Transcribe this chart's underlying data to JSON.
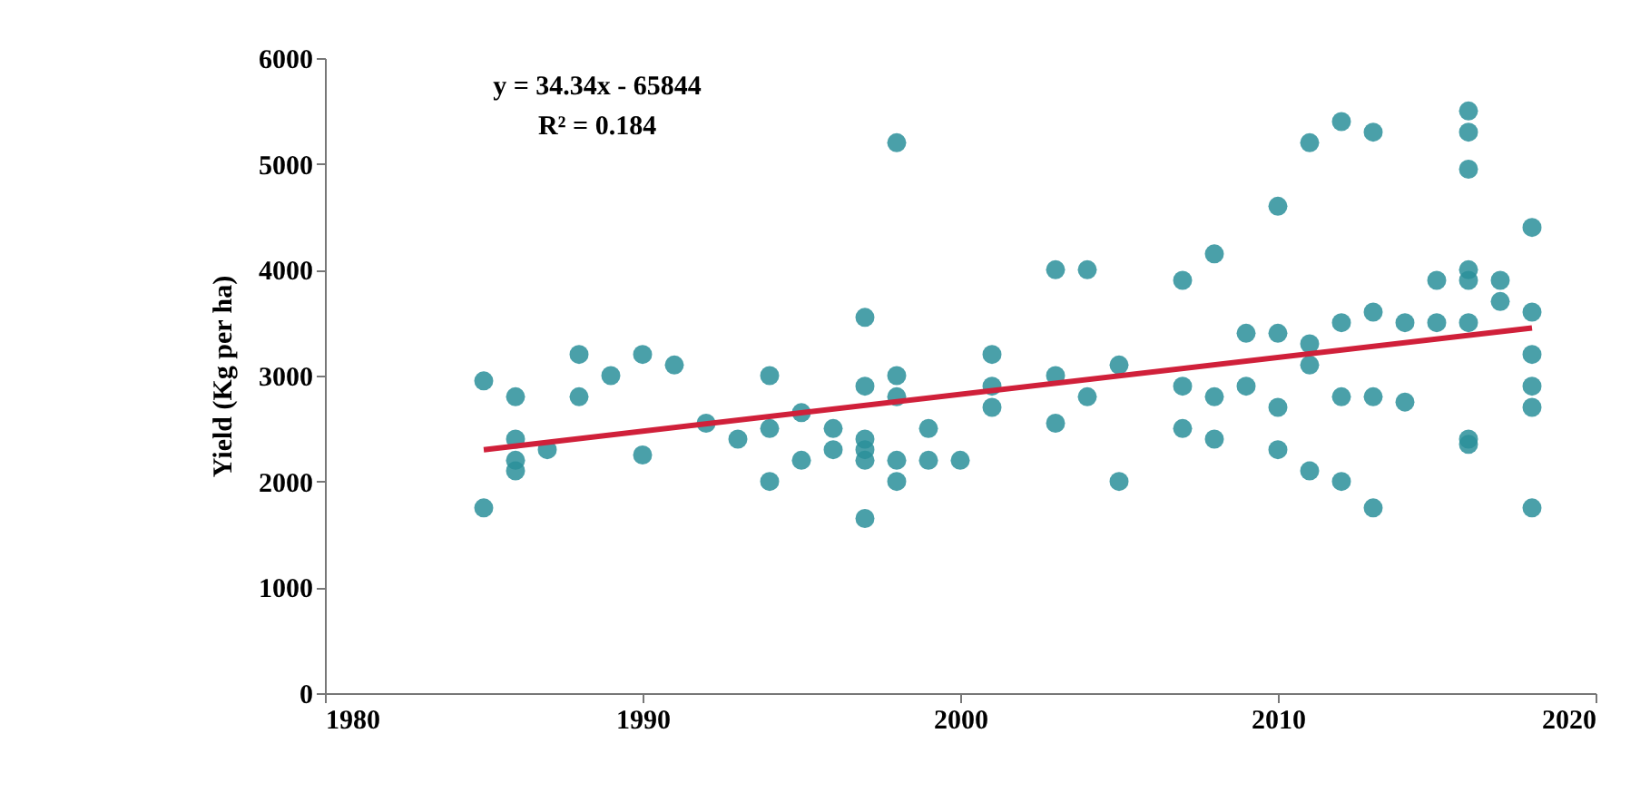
{
  "chart_data": {
    "type": "scatter",
    "ylabel": "Yield (Kg per ha)",
    "annotations": [
      "y = 34.34x - 65844",
      "R² = 0.184"
    ],
    "xlim": [
      1980,
      2020
    ],
    "xticks": [
      1980,
      1990,
      2000,
      2010,
      2020
    ],
    "ylim": [
      0,
      6000
    ],
    "yticks": [
      0,
      1000,
      2000,
      3000,
      4000,
      5000,
      6000
    ],
    "grid": false,
    "marker": "circle",
    "series": [
      {
        "color": "#2a8f9a",
        "x": [
          1985,
          1985,
          1986,
          1986,
          1986,
          1986,
          1987,
          1988,
          1988,
          1989,
          1990,
          1990,
          1991,
          1992,
          1993,
          1994,
          1994,
          1994,
          1995,
          1995,
          1996,
          1996,
          1997,
          1997,
          1997,
          1997,
          1997,
          1997,
          1998,
          1998,
          1998,
          1998,
          1998,
          1999,
          1999,
          2000,
          2001,
          2001,
          2001,
          2003,
          2003,
          2003,
          2004,
          2004,
          2005,
          2005,
          2007,
          2007,
          2007,
          2008,
          2008,
          2008,
          2009,
          2009,
          2010,
          2010,
          2010,
          2010,
          2011,
          2011,
          2011,
          2011,
          2012,
          2012,
          2012,
          2012,
          2013,
          2013,
          2013,
          2013,
          2014,
          2014,
          2015,
          2015,
          2016,
          2016,
          2016,
          2016,
          2016,
          2016,
          2016,
          2016,
          2017,
          2017,
          2018,
          2018,
          2018,
          2018,
          2018,
          2018
        ],
        "values": [
          2950,
          1750,
          2800,
          2400,
          2100,
          2200,
          2300,
          3200,
          2800,
          3000,
          3200,
          2250,
          3100,
          2550,
          2400,
          3000,
          2000,
          2500,
          2200,
          2650,
          2300,
          2500,
          3550,
          2900,
          1650,
          2300,
          2400,
          2200,
          5200,
          3000,
          2800,
          2200,
          2000,
          2500,
          2200,
          2200,
          3200,
          2700,
          2900,
          4000,
          3000,
          2550,
          4000,
          2800,
          3100,
          2000,
          3900,
          2900,
          2500,
          4150,
          2800,
          2400,
          3400,
          2900,
          4600,
          3400,
          2700,
          2300,
          5200,
          3300,
          2100,
          3100,
          5400,
          3500,
          2800,
          2000,
          5300,
          3600,
          2800,
          1750,
          3500,
          2750,
          3900,
          3500,
          5500,
          5300,
          4950,
          3900,
          4000,
          3500,
          2400,
          2350,
          3900,
          3700,
          4400,
          3600,
          3200,
          2900,
          2700,
          1750
        ]
      },
      {
        "type": "line",
        "color": "#d0203a",
        "marker": "none",
        "x": [
          1985,
          2018
        ],
        "values": [
          2300,
          3450
        ]
      }
    ]
  }
}
